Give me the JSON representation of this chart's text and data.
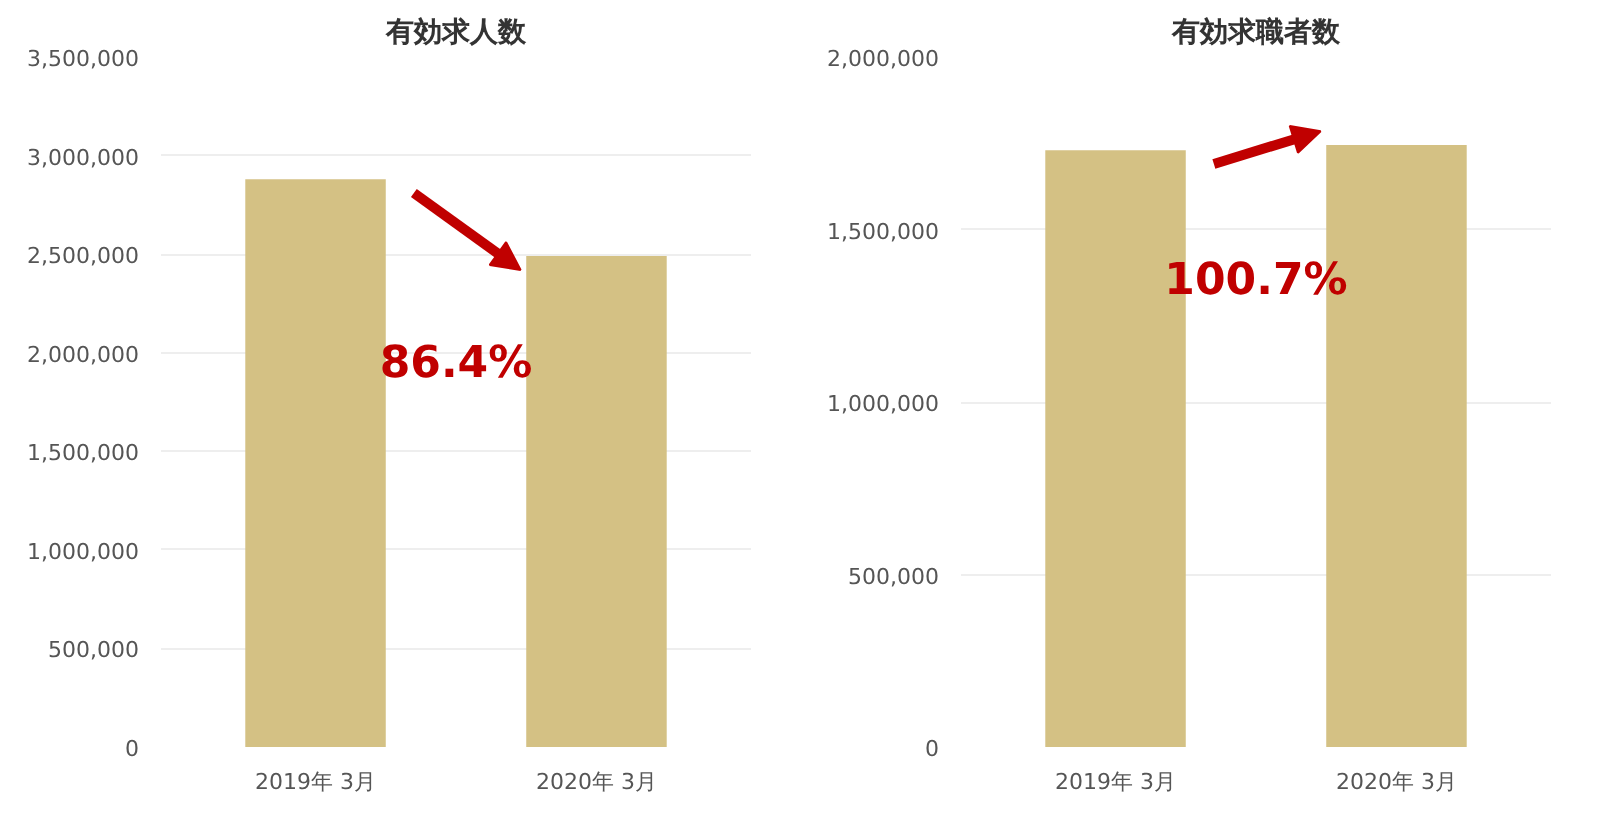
{
  "chart_data": [
    {
      "type": "bar",
      "title": "有効求人数",
      "categories": [
        "2019年 3月",
        "2020年 3月"
      ],
      "values": [
        2880000,
        2490000
      ],
      "color": "#d4c184",
      "ylim": [
        0,
        3500000
      ],
      "yticks": [
        {
          "value": 0,
          "label": "0"
        },
        {
          "value": 500000,
          "label": "500,000"
        },
        {
          "value": 1000000,
          "label": "1,000,000"
        },
        {
          "value": 1500000,
          "label": "1,500,000"
        },
        {
          "value": 2000000,
          "label": "2,000,000"
        },
        {
          "value": 2500000,
          "label": "2,500,000"
        },
        {
          "value": 3000000,
          "label": "3,000,000"
        },
        {
          "value": 3500000,
          "label": "3,500,000"
        }
      ],
      "grid": "y",
      "annotations": [
        "86.4%"
      ]
    },
    {
      "type": "bar",
      "title": "有効求職者数",
      "categories": [
        "2019年 3月",
        "2020年 3月"
      ],
      "values": [
        1730000,
        1745000
      ],
      "color": "#d4c184",
      "ylim": [
        0,
        2000000
      ],
      "yticks": [
        {
          "value": 0,
          "label": "0"
        },
        {
          "value": 500000,
          "label": "500,000"
        },
        {
          "value": 1000000,
          "label": "1,000,000"
        },
        {
          "value": 1500000,
          "label": "1,500,000"
        },
        {
          "value": 2000000,
          "label": "2,000,000"
        }
      ],
      "grid": "y",
      "annotations": [
        "100.7%"
      ]
    }
  ]
}
